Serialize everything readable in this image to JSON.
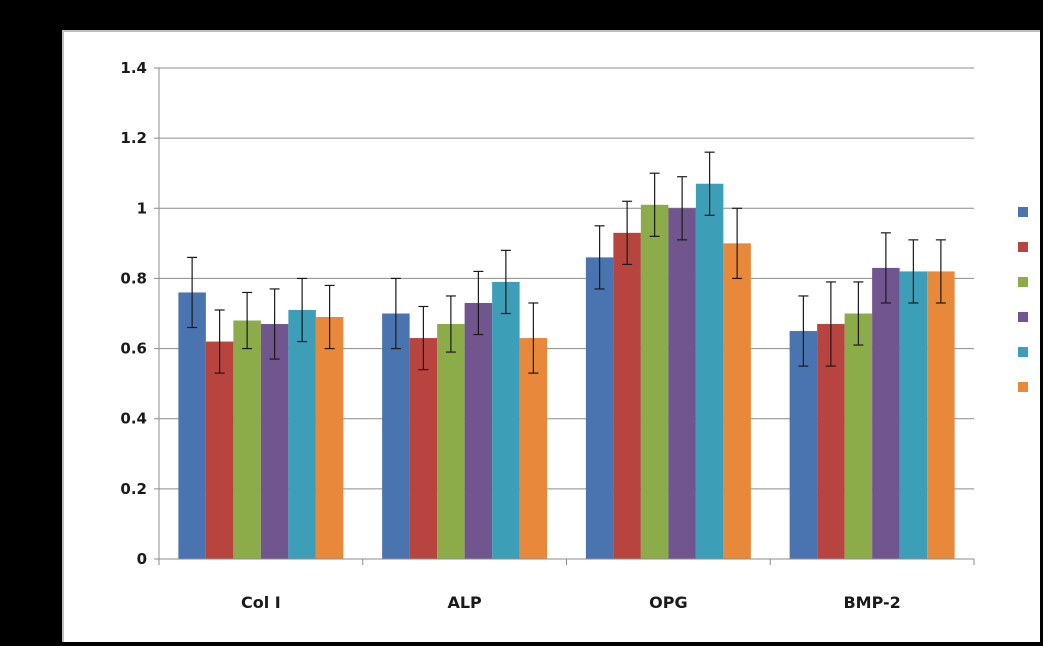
{
  "chart_data": {
    "type": "bar",
    "title": "",
    "xlabel": "",
    "ylabel": "",
    "categories": [
      "Col I",
      "ALP",
      "OPG",
      "BMP-2"
    ],
    "ylim": [
      0,
      1.4
    ],
    "yticks": [
      0,
      0.2,
      0.4,
      0.6,
      0.8,
      1,
      1.2,
      1.4
    ],
    "ytick_labels": [
      "0",
      "0.2",
      "0.4",
      "0.6",
      "0.8",
      "1",
      "1.2",
      "1.4"
    ],
    "grid": true,
    "legend_position": "right",
    "series": [
      {
        "color": "#4a74b0",
        "values": [
          0.76,
          0.7,
          0.86,
          0.65
        ],
        "errors": [
          0.1,
          0.1,
          0.09,
          0.1
        ]
      },
      {
        "color": "#b8443f",
        "values": [
          0.62,
          0.63,
          0.93,
          0.67
        ],
        "errors": [
          0.09,
          0.09,
          0.09,
          0.12
        ]
      },
      {
        "color": "#8cac49",
        "values": [
          0.68,
          0.67,
          1.01,
          0.7
        ],
        "errors": [
          0.08,
          0.08,
          0.09,
          0.09
        ]
      },
      {
        "color": "#71558f",
        "values": [
          0.67,
          0.73,
          1.0,
          0.83
        ],
        "errors": [
          0.1,
          0.09,
          0.09,
          0.1
        ]
      },
      {
        "color": "#3d9eb8",
        "values": [
          0.71,
          0.79,
          1.07,
          0.82
        ],
        "errors": [
          0.09,
          0.09,
          0.09,
          0.09
        ]
      },
      {
        "color": "#e8883a",
        "values": [
          0.69,
          0.63,
          0.9,
          0.82
        ],
        "errors": [
          0.09,
          0.1,
          0.1,
          0.09
        ]
      }
    ]
  }
}
